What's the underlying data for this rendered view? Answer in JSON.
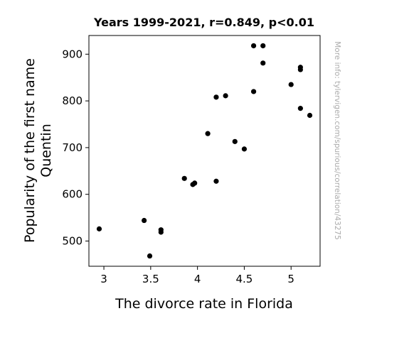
{
  "chart_data": {
    "type": "scatter",
    "title": "Years 1999-2021, r=0.849, p<0.01",
    "xlabel": "The divorce rate in Florida",
    "ylabel_lines": [
      "Popularity of the first name",
      "Quentin"
    ],
    "credit": "More info: tylervigen.com/spurious/correlation/43275",
    "xlim": [
      2.84,
      5.31
    ],
    "ylim": [
      446,
      940
    ],
    "xticks": [
      3,
      3.5,
      4,
      4.5,
      5
    ],
    "xtick_labels": [
      "3",
      "3.5",
      "4",
      "4.5",
      "5"
    ],
    "yticks": [
      500,
      600,
      700,
      800,
      900
    ],
    "ytick_labels": [
      "500",
      "600",
      "700",
      "800",
      "900"
    ],
    "point_color": "#000000",
    "points": [
      {
        "x": 2.95,
        "y": 526
      },
      {
        "x": 3.43,
        "y": 544
      },
      {
        "x": 3.49,
        "y": 468
      },
      {
        "x": 3.61,
        "y": 524
      },
      {
        "x": 3.61,
        "y": 519
      },
      {
        "x": 3.86,
        "y": 634
      },
      {
        "x": 3.95,
        "y": 621
      },
      {
        "x": 3.97,
        "y": 624
      },
      {
        "x": 4.11,
        "y": 730
      },
      {
        "x": 4.2,
        "y": 808
      },
      {
        "x": 4.2,
        "y": 628
      },
      {
        "x": 4.3,
        "y": 811
      },
      {
        "x": 4.4,
        "y": 713
      },
      {
        "x": 4.5,
        "y": 697
      },
      {
        "x": 4.6,
        "y": 918
      },
      {
        "x": 4.6,
        "y": 820
      },
      {
        "x": 4.7,
        "y": 918
      },
      {
        "x": 4.7,
        "y": 881
      },
      {
        "x": 5.0,
        "y": 835
      },
      {
        "x": 5.1,
        "y": 872
      },
      {
        "x": 5.1,
        "y": 867
      },
      {
        "x": 5.1,
        "y": 784
      },
      {
        "x": 5.2,
        "y": 769
      }
    ]
  }
}
